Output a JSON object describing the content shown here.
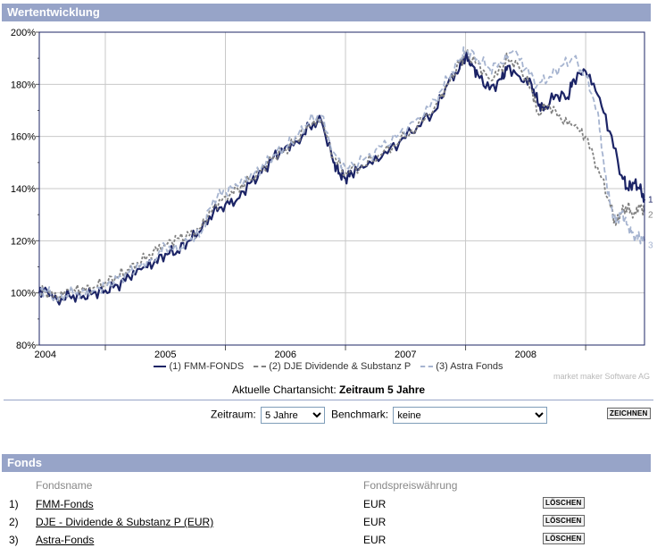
{
  "section_chart": {
    "title": "Wertentwicklung"
  },
  "chart_data": {
    "type": "line",
    "title": "",
    "xlabel": "",
    "ylabel": "",
    "x_ticks": [
      "2004",
      "2005",
      "2006",
      "2007",
      "2008"
    ],
    "y_ticks": [
      "80%",
      "100%",
      "120%",
      "140%",
      "160%",
      "180%",
      "200%"
    ],
    "ylim": [
      80,
      200
    ],
    "xlim": [
      2003.45,
      2008.49
    ],
    "grid": true,
    "series": [
      {
        "name": "(1) FMM-FONDS",
        "end_label": "1",
        "color": "#1c2466",
        "dash": "solid",
        "x": [
          2003.45,
          2003.5,
          2003.6,
          2003.7,
          2003.8,
          2003.9,
          2004.0,
          2004.1,
          2004.2,
          2004.3,
          2004.4,
          2004.5,
          2004.6,
          2004.7,
          2004.8,
          2004.9,
          2005.0,
          2005.1,
          2005.2,
          2005.3,
          2005.4,
          2005.5,
          2005.6,
          2005.7,
          2005.8,
          2005.9,
          2005.95,
          2006.0,
          2006.05,
          2006.15,
          2006.3,
          2006.45,
          2006.6,
          2006.75,
          2006.85,
          2006.95,
          2007.0,
          2007.05,
          2007.1,
          2007.2,
          2007.3,
          2007.35,
          2007.45,
          2007.55,
          2007.6,
          2007.65,
          2007.75,
          2007.85,
          2007.9,
          2008.0,
          2008.1,
          2008.2,
          2008.3,
          2008.35,
          2008.4,
          2008.45,
          2008.49
        ],
        "values": [
          100,
          102,
          97,
          99,
          98,
          100,
          101,
          103,
          106,
          109,
          111,
          115,
          116,
          120,
          124,
          131,
          134,
          136,
          142,
          146,
          152,
          156,
          158,
          164,
          166,
          150,
          146,
          144,
          146,
          148,
          152,
          158,
          164,
          170,
          180,
          186,
          191,
          188,
          184,
          178,
          182,
          187,
          183,
          180,
          173,
          170,
          176,
          175,
          182,
          185,
          176,
          162,
          145,
          140,
          142,
          140,
          136
        ]
      },
      {
        "name": "(2) DJE Dividende & Substanz P",
        "end_label": "2",
        "color": "#808080",
        "dash": "dash",
        "x": [
          2003.45,
          2003.5,
          2003.6,
          2003.7,
          2003.8,
          2003.9,
          2004.0,
          2004.1,
          2004.2,
          2004.3,
          2004.4,
          2004.5,
          2004.6,
          2004.7,
          2004.8,
          2004.9,
          2005.0,
          2005.1,
          2005.2,
          2005.3,
          2005.4,
          2005.5,
          2005.6,
          2005.7,
          2005.8,
          2005.9,
          2006.0,
          2006.15,
          2006.3,
          2006.45,
          2006.6,
          2006.75,
          2006.85,
          2006.95,
          2007.0,
          2007.1,
          2007.2,
          2007.3,
          2007.35,
          2007.45,
          2007.55,
          2007.6,
          2007.7,
          2007.8,
          2007.9,
          2008.0,
          2008.1,
          2008.2,
          2008.25,
          2008.3,
          2008.35,
          2008.4,
          2008.45,
          2008.49
        ],
        "values": [
          100,
          101,
          98,
          101,
          101,
          102,
          104,
          106,
          109,
          112,
          116,
          119,
          121,
          122,
          125,
          133,
          137,
          140,
          143,
          147,
          152,
          155,
          159,
          164,
          166,
          152,
          146,
          149,
          153,
          158,
          164,
          172,
          180,
          188,
          192,
          188,
          182,
          186,
          190,
          186,
          178,
          169,
          172,
          166,
          164,
          160,
          148,
          135,
          126,
          131,
          133,
          130,
          134,
          131
        ]
      },
      {
        "name": "(3) Astra Fonds",
        "end_label": "3",
        "color": "#a6b4d0",
        "dash": "longdash",
        "x": [
          2003.45,
          2003.5,
          2003.6,
          2003.7,
          2003.8,
          2003.9,
          2004.0,
          2004.1,
          2004.2,
          2004.3,
          2004.4,
          2004.5,
          2004.6,
          2004.7,
          2004.8,
          2004.9,
          2005.0,
          2005.1,
          2005.2,
          2005.3,
          2005.4,
          2005.5,
          2005.6,
          2005.7,
          2005.8,
          2005.9,
          2006.0,
          2006.15,
          2006.3,
          2006.45,
          2006.6,
          2006.75,
          2006.85,
          2006.95,
          2007.0,
          2007.1,
          2007.2,
          2007.3,
          2007.4,
          2007.5,
          2007.6,
          2007.7,
          2007.8,
          2007.9,
          2008.0,
          2008.1,
          2008.15,
          2008.2,
          2008.25,
          2008.3,
          2008.35,
          2008.4,
          2008.45,
          2008.49
        ],
        "values": [
          100,
          101,
          97,
          100,
          100,
          101,
          103,
          105,
          108,
          111,
          113,
          118,
          116,
          120,
          123,
          136,
          139,
          141,
          144,
          148,
          153,
          156,
          160,
          166,
          168,
          154,
          148,
          151,
          156,
          161,
          167,
          174,
          182,
          189,
          193,
          190,
          186,
          188,
          193,
          186,
          180,
          183,
          187,
          190,
          183,
          170,
          150,
          135,
          127,
          131,
          126,
          122,
          121,
          120
        ]
      }
    ]
  },
  "legend": {
    "items": [
      "(1) FMM-FONDS",
      "(2) DJE Dividende & Substanz P",
      "(3) Astra Fonds"
    ]
  },
  "credit": "market maker Software AG",
  "current_view": {
    "label": "Aktuelle Chartansicht:",
    "value": "Zeitraum 5 Jahre"
  },
  "controls": {
    "zeitraum_label": "Zeitraum:",
    "zeitraum_value": "5 Jahre",
    "benchmark_label": "Benchmark:",
    "benchmark_value": "keine",
    "draw_button": "ZEICHNEN"
  },
  "section_fonds": {
    "title": "Fonds"
  },
  "fonds_table": {
    "headers": {
      "name": "Fondsname",
      "currency": "Fondspreiswährung"
    },
    "delete_label": "LÖSCHEN",
    "rows": [
      {
        "num": "1)",
        "name": "FMM-Fonds",
        "currency": "EUR"
      },
      {
        "num": "2)",
        "name": "DJE - Dividende & Substanz P (EUR)",
        "currency": "EUR"
      },
      {
        "num": "3)",
        "name": "Astra-Fonds",
        "currency": "EUR"
      }
    ]
  }
}
